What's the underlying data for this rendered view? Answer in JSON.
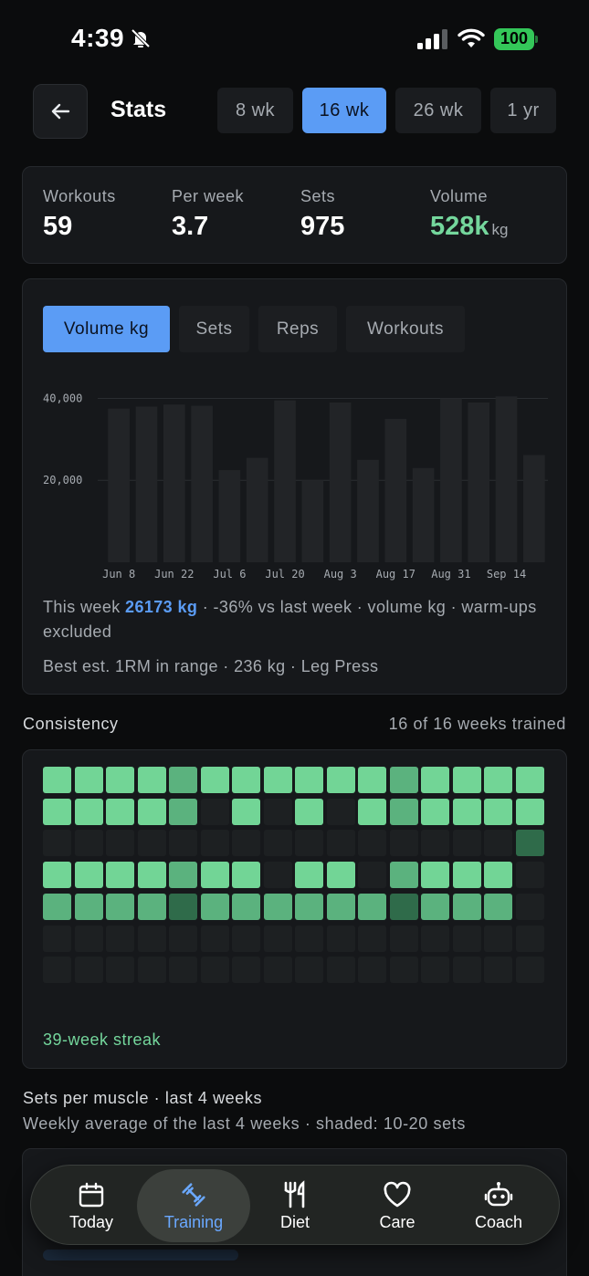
{
  "status": {
    "time": "4:39",
    "battery": "100"
  },
  "header": {
    "title": "Stats",
    "range_tabs": [
      {
        "label": "8 wk",
        "active": false
      },
      {
        "label": "16 wk",
        "active": true
      },
      {
        "label": "26 wk",
        "active": false
      },
      {
        "label": "1 yr",
        "active": false
      }
    ]
  },
  "summary": [
    {
      "label": "Workouts",
      "value": "59",
      "unit": ""
    },
    {
      "label": "Per week",
      "value": "3.7",
      "unit": ""
    },
    {
      "label": "Sets",
      "value": "975",
      "unit": ""
    },
    {
      "label": "Volume",
      "value": "528k",
      "unit": "kg"
    }
  ],
  "metric_tabs": [
    {
      "label": "Volume kg",
      "active": true
    },
    {
      "label": "Sets",
      "active": false
    },
    {
      "label": "Reps",
      "active": false
    },
    {
      "label": "Workouts",
      "active": false
    }
  ],
  "chart_data": {
    "type": "bar",
    "y_ticks": [
      "20,000",
      "40,000"
    ],
    "x_tick_labels": [
      "Jun 8",
      "Jun 22",
      "Jul 6",
      "Jul 20",
      "Aug 3",
      "Aug 17",
      "Aug 31",
      "Sep 14"
    ],
    "values": [
      37500,
      38000,
      38500,
      38200,
      22500,
      25500,
      39500,
      20000,
      39000,
      25000,
      35000,
      23000,
      40000,
      39000,
      40500,
      26173
    ],
    "ylim": [
      0,
      41000
    ],
    "grid": true
  },
  "week_summary": {
    "prefix": "This week ",
    "value": "26173",
    "unit": " kg",
    "suffix": " · -36% vs last week · volume kg · warm-ups excluded"
  },
  "best": "Best est. 1RM in range · 236 kg · Leg Press",
  "consistency": {
    "title": "Consistency",
    "count": "16 of 16 weeks trained",
    "streak": "39-week streak",
    "grid": [
      [
        3,
        3,
        3,
        3,
        2,
        3,
        3,
        3,
        3,
        3,
        3,
        2,
        3,
        3,
        3,
        3
      ],
      [
        3,
        3,
        3,
        3,
        2,
        0,
        3,
        0,
        3,
        0,
        3,
        2,
        3,
        3,
        3,
        3
      ],
      [
        0,
        0,
        0,
        0,
        0,
        0,
        0,
        0,
        0,
        0,
        0,
        0,
        0,
        0,
        0,
        1
      ],
      [
        3,
        3,
        3,
        3,
        2,
        3,
        3,
        0,
        3,
        3,
        0,
        2,
        3,
        3,
        3,
        0
      ],
      [
        2,
        2,
        2,
        2,
        1,
        2,
        2,
        2,
        2,
        2,
        2,
        1,
        2,
        2,
        2,
        0
      ],
      [
        0,
        0,
        0,
        0,
        0,
        0,
        0,
        0,
        0,
        0,
        0,
        0,
        0,
        0,
        0,
        0
      ],
      [
        0,
        0,
        0,
        0,
        0,
        0,
        0,
        0,
        0,
        0,
        0,
        0,
        0,
        0,
        0,
        0
      ]
    ],
    "colors": [
      "#1d2022",
      "#2f6b4a",
      "#5bb27e",
      "#72d596"
    ]
  },
  "sets_per_muscle": {
    "title": "Sets per muscle · last 4 weeks",
    "subtitle": "Weekly average of the last 4 weeks · shaded: 10-20 sets"
  },
  "tabbar": [
    {
      "label": "Today",
      "icon": "calendar-icon",
      "active": false
    },
    {
      "label": "Training",
      "icon": "dumbbell-icon",
      "active": true
    },
    {
      "label": "Diet",
      "icon": "utensils-icon",
      "active": false
    },
    {
      "label": "Care",
      "icon": "heart-icon",
      "active": false
    },
    {
      "label": "Coach",
      "icon": "robot-icon",
      "active": false
    }
  ]
}
